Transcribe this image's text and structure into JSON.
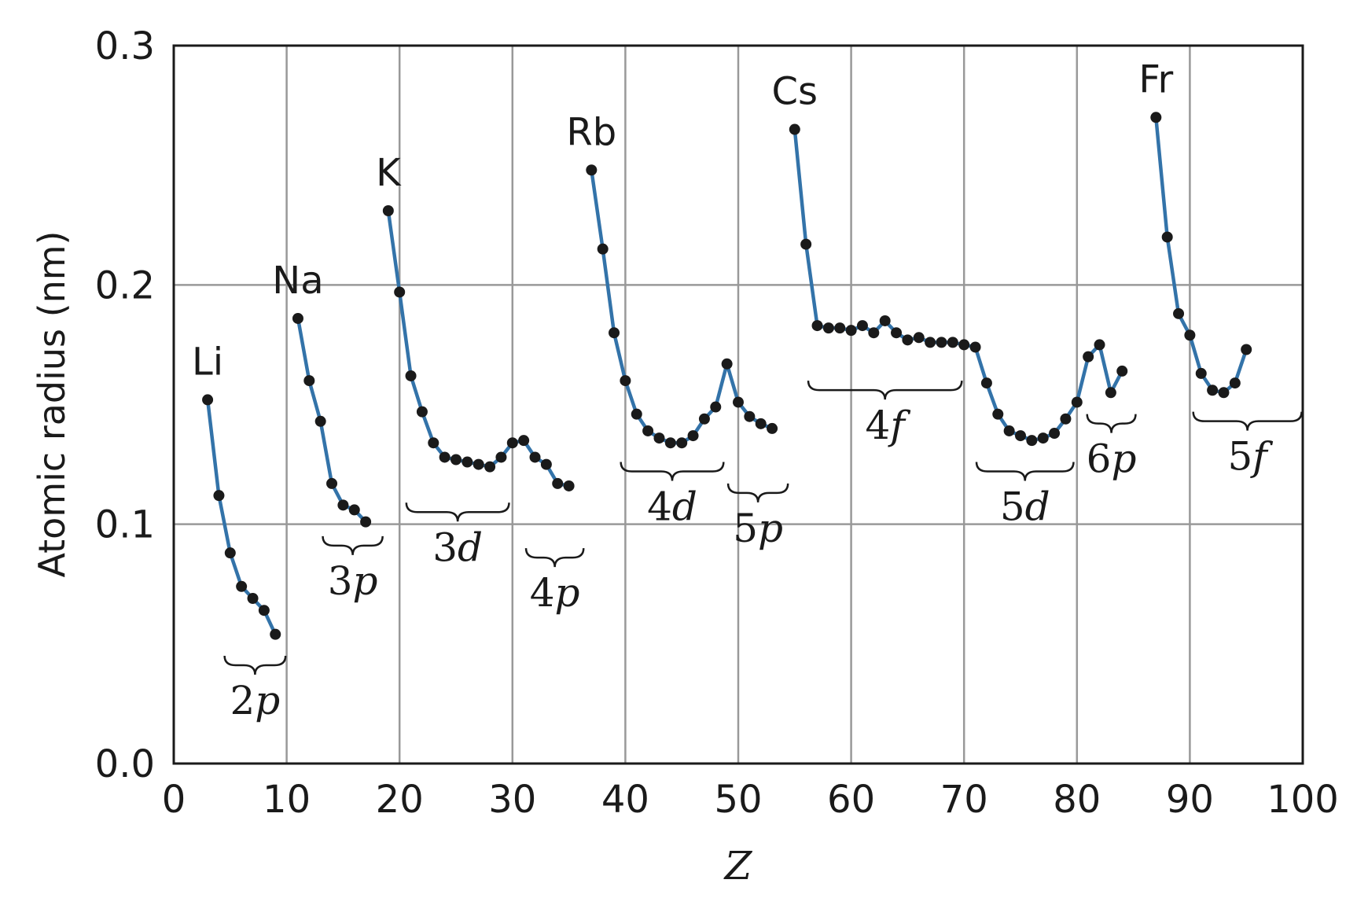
{
  "chart_data": {
    "type": "line",
    "title": "",
    "xlabel": "Z",
    "ylabel": "Atomic radius (nm)",
    "xlim": [
      0,
      100
    ],
    "ylim": [
      0.0,
      0.3
    ],
    "xticks": [
      0,
      10,
      20,
      30,
      40,
      50,
      60,
      70,
      80,
      90,
      100
    ],
    "xtick_labels": [
      "0",
      "10",
      "20",
      "30",
      "40",
      "50",
      "60",
      "70",
      "80",
      "90",
      "100"
    ],
    "yticks": [
      0.0,
      0.1,
      0.2,
      0.3
    ],
    "ytick_labels": [
      "0.0",
      "0.1",
      "0.2",
      "0.3"
    ],
    "grid": true,
    "colors": {
      "line": "#3373a9",
      "marker": "#1a1a1a",
      "grid": "#999999"
    },
    "series": [
      {
        "points": [
          [
            3,
            0.152
          ],
          [
            4,
            0.112
          ],
          [
            5,
            0.088
          ],
          [
            6,
            0.074
          ],
          [
            7,
            0.069
          ],
          [
            8,
            0.064
          ],
          [
            9,
            0.054
          ]
        ]
      },
      {
        "points": [
          [
            11,
            0.186
          ],
          [
            12,
            0.16
          ],
          [
            13,
            0.143
          ],
          [
            14,
            0.117
          ],
          [
            15,
            0.108
          ],
          [
            16,
            0.106
          ],
          [
            17,
            0.101
          ]
        ]
      },
      {
        "points": [
          [
            19,
            0.231
          ],
          [
            20,
            0.197
          ],
          [
            21,
            0.162
          ],
          [
            22,
            0.147
          ],
          [
            23,
            0.134
          ],
          [
            24,
            0.128
          ],
          [
            25,
            0.127
          ],
          [
            26,
            0.126
          ],
          [
            27,
            0.125
          ],
          [
            28,
            0.124
          ],
          [
            29,
            0.128
          ],
          [
            30,
            0.134
          ],
          [
            31,
            0.135
          ],
          [
            32,
            0.128
          ],
          [
            33,
            0.125
          ],
          [
            34,
            0.117
          ],
          [
            35,
            0.116
          ]
        ]
      },
      {
        "points": [
          [
            37,
            0.248
          ],
          [
            38,
            0.215
          ],
          [
            39,
            0.18
          ],
          [
            40,
            0.16
          ],
          [
            41,
            0.146
          ],
          [
            42,
            0.139
          ],
          [
            43,
            0.136
          ],
          [
            44,
            0.134
          ],
          [
            45,
            0.134
          ],
          [
            46,
            0.137
          ],
          [
            47,
            0.144
          ],
          [
            48,
            0.149
          ],
          [
            49,
            0.167
          ],
          [
            50,
            0.151
          ],
          [
            51,
            0.145
          ],
          [
            52,
            0.142
          ],
          [
            53,
            0.14
          ]
        ]
      },
      {
        "points": [
          [
            55,
            0.265
          ],
          [
            56,
            0.217
          ],
          [
            57,
            0.183
          ],
          [
            58,
            0.182
          ],
          [
            59,
            0.182
          ],
          [
            60,
            0.181
          ],
          [
            61,
            0.183
          ],
          [
            62,
            0.18
          ],
          [
            63,
            0.185
          ],
          [
            64,
            0.18
          ],
          [
            65,
            0.177
          ],
          [
            66,
            0.178
          ],
          [
            67,
            0.176
          ],
          [
            68,
            0.176
          ],
          [
            69,
            0.176
          ],
          [
            70,
            0.175
          ],
          [
            71,
            0.174
          ],
          [
            72,
            0.159
          ],
          [
            73,
            0.146
          ],
          [
            74,
            0.139
          ],
          [
            75,
            0.137
          ],
          [
            76,
            0.135
          ],
          [
            77,
            0.136
          ],
          [
            78,
            0.138
          ],
          [
            79,
            0.144
          ],
          [
            80,
            0.151
          ],
          [
            81,
            0.17
          ],
          [
            82,
            0.175
          ],
          [
            83,
            0.155
          ],
          [
            84,
            0.164
          ]
        ]
      },
      {
        "points": [
          [
            87,
            0.27
          ],
          [
            88,
            0.22
          ],
          [
            89,
            0.188
          ],
          [
            90,
            0.179
          ],
          [
            91,
            0.163
          ],
          [
            92,
            0.156
          ],
          [
            93,
            0.155
          ],
          [
            94,
            0.159
          ],
          [
            95,
            0.173
          ]
        ]
      }
    ],
    "element_labels": [
      {
        "text": "Li",
        "x": 3,
        "y": 0.152
      },
      {
        "text": "Na",
        "x": 11,
        "y": 0.186
      },
      {
        "text": "K",
        "x": 19,
        "y": 0.231
      },
      {
        "text": "Rb",
        "x": 37,
        "y": 0.248
      },
      {
        "text": "Cs",
        "x": 55,
        "y": 0.265
      },
      {
        "text": "Fr",
        "x": 87,
        "y": 0.27
      }
    ],
    "subshell_labels": [
      {
        "num": "2",
        "letter": "p",
        "x1": 4.5,
        "x2": 9.9,
        "y": 0.045
      },
      {
        "num": "3",
        "letter": "p",
        "x1": 13.2,
        "x2": 18.5,
        "y": 0.095
      },
      {
        "num": "3",
        "letter": "d",
        "x1": 20.6,
        "x2": 29.7,
        "y": 0.109
      },
      {
        "num": "4",
        "letter": "p",
        "x1": 31.2,
        "x2": 36.3,
        "y": 0.09
      },
      {
        "num": "4",
        "letter": "d",
        "x1": 39.6,
        "x2": 48.7,
        "y": 0.126
      },
      {
        "num": "5",
        "letter": "p",
        "x1": 49.1,
        "x2": 54.4,
        "y": 0.117
      },
      {
        "num": "4",
        "letter": "f",
        "x1": 56.2,
        "x2": 69.8,
        "y": 0.16
      },
      {
        "num": "5",
        "letter": "d",
        "x1": 71.1,
        "x2": 79.7,
        "y": 0.126
      },
      {
        "num": "6",
        "letter": "p",
        "x1": 80.9,
        "x2": 85.2,
        "y": 0.146
      },
      {
        "num": "5",
        "letter": "f",
        "x1": 90.3,
        "x2": 99.9,
        "y": 0.147
      }
    ]
  }
}
